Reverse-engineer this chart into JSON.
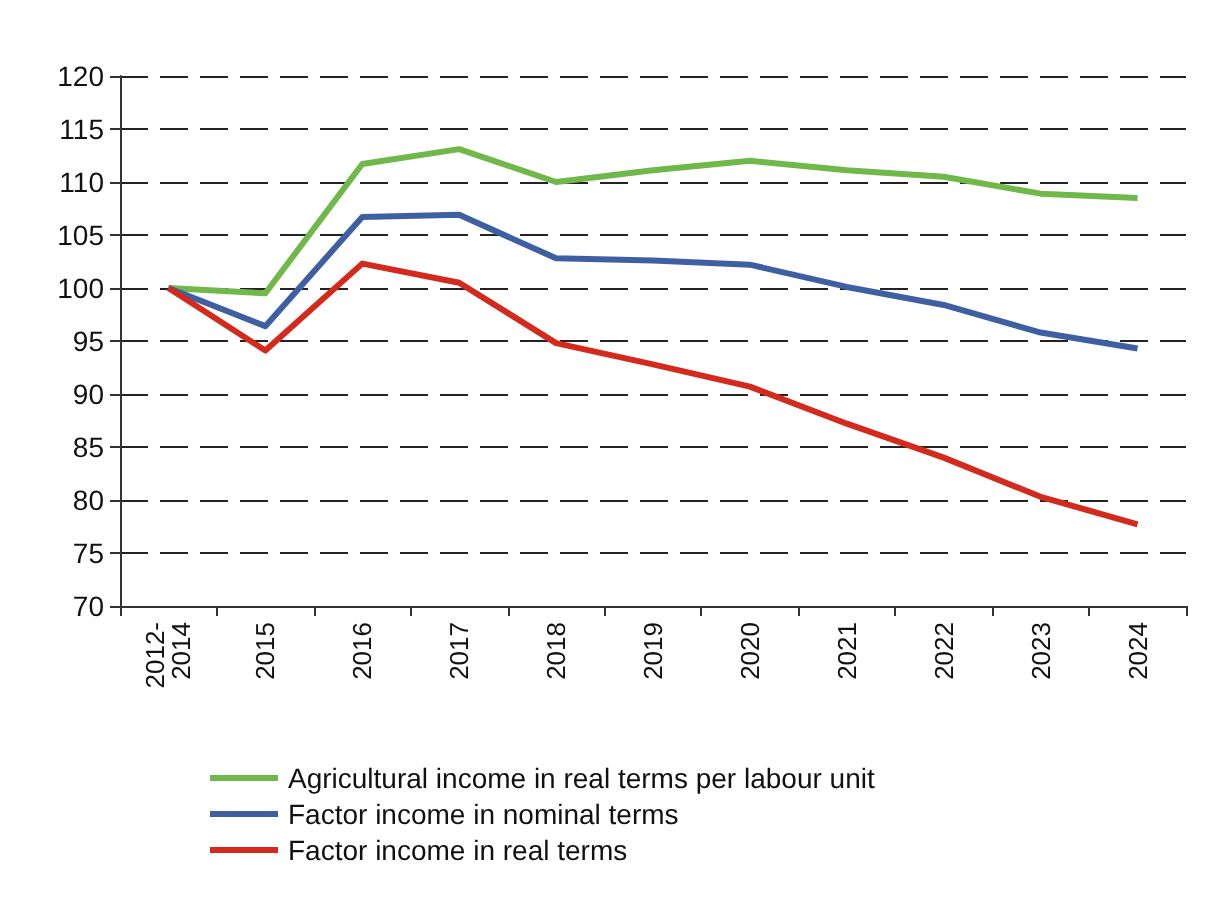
{
  "chart_data": {
    "type": "line",
    "categories": [
      "2012-2014",
      "2015",
      "2016",
      "2017",
      "2018",
      "2019",
      "2020",
      "2021",
      "2022",
      "2023",
      "2024"
    ],
    "series": [
      {
        "name": "Agricultural income in real terms per labour unit",
        "color": "#70b84a",
        "values": [
          100,
          99.5,
          111.7,
          113.1,
          110,
          111.1,
          112,
          111.1,
          110.5,
          108.9,
          108.5
        ]
      },
      {
        "name": "Factor income in nominal terms",
        "color": "#3f5fa3",
        "values": [
          100,
          96.4,
          106.7,
          106.9,
          102.8,
          102.6,
          102.2,
          100.1,
          98.4,
          95.8,
          94.3
        ]
      },
      {
        "name": "Factor income in real terms",
        "color": "#d42a1e",
        "values": [
          100,
          94.1,
          102.3,
          100.5,
          94.8,
          92.8,
          90.7,
          87.2,
          84,
          80.3,
          77.7
        ]
      }
    ],
    "ylim": [
      70,
      120
    ],
    "yticks": [
      70,
      75,
      80,
      85,
      90,
      95,
      100,
      105,
      110,
      115,
      120
    ],
    "grid": "y",
    "legend": "bottom",
    "marker": "none",
    "line_style": "solid"
  }
}
